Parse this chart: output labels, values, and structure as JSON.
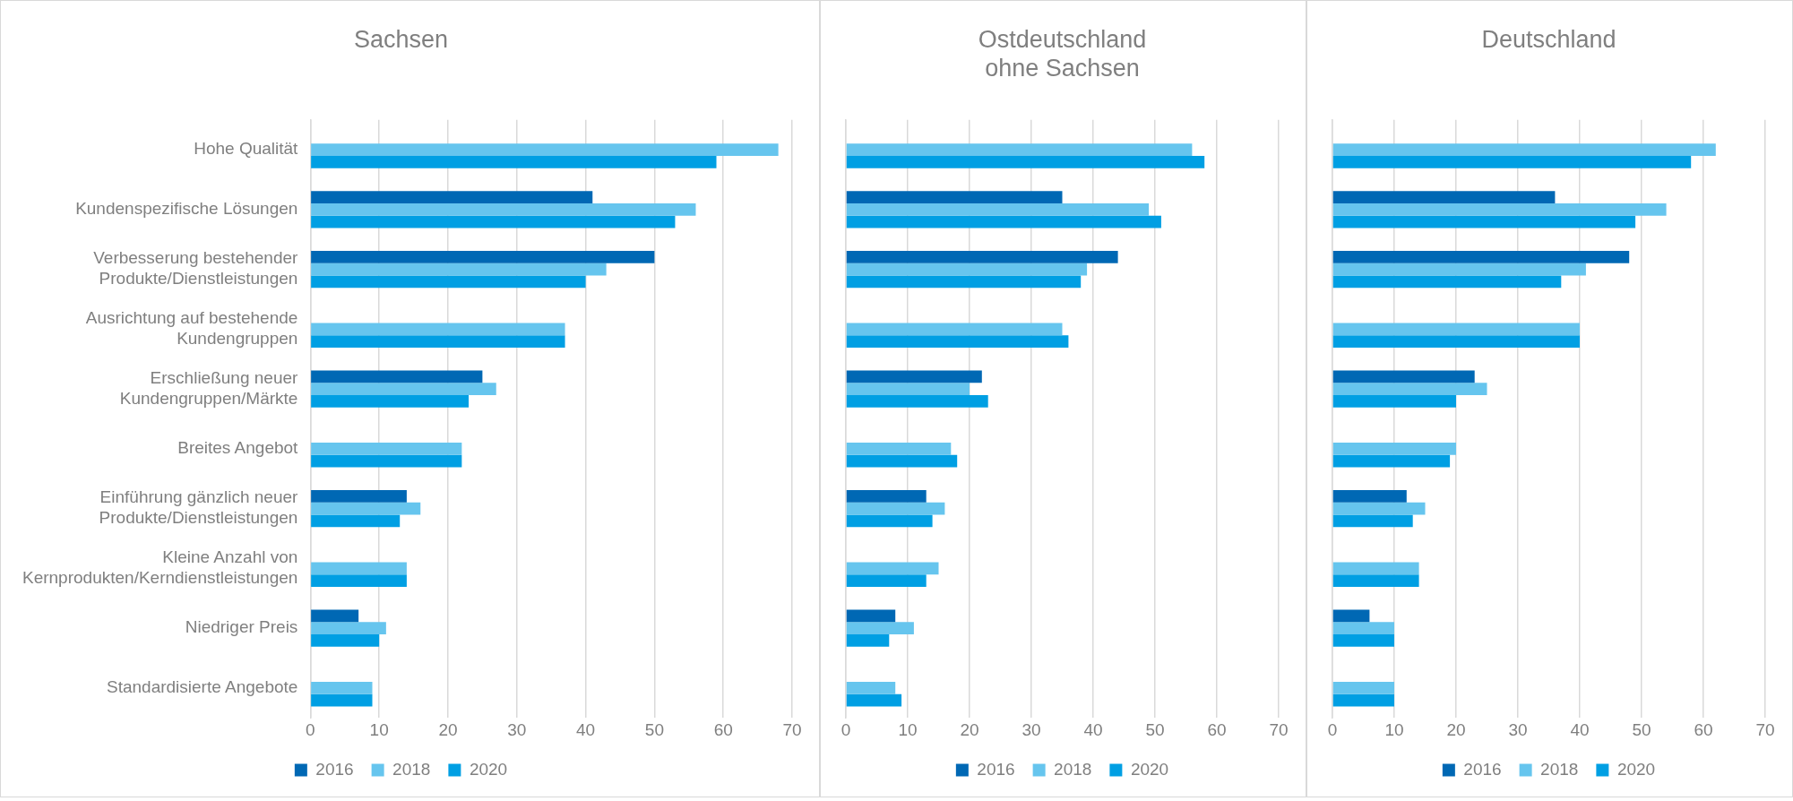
{
  "chart_data": [
    {
      "type": "bar",
      "orientation": "horizontal",
      "title": "Sachsen",
      "categories": [
        "Hohe Qualität",
        "Kundenspezifische Lösungen",
        "Verbesserung bestehender\nProdukte/Dienstleistungen",
        "Ausrichtung auf bestehende\nKundengruppen",
        "Erschließung neuer\nKundengruppen/Märkte",
        "Breites Angebot",
        "Einführung gänzlich neuer\nProdukte/Dienstleistungen",
        "Kleine Anzahl von\nKernprodukten/Kerndienstleistungen",
        "Niedriger Preis",
        "Standardisierte Angebote"
      ],
      "series": [
        {
          "name": "2016",
          "color": "#0068b4",
          "values": [
            null,
            41,
            50,
            null,
            25,
            null,
            14,
            null,
            7,
            null
          ]
        },
        {
          "name": "2018",
          "color": "#66c5ee",
          "values": [
            68,
            56,
            43,
            37,
            27,
            22,
            16,
            14,
            11,
            9
          ]
        },
        {
          "name": "2020",
          "color": "#009fe3",
          "values": [
            59,
            53,
            40,
            37,
            23,
            22,
            13,
            14,
            10,
            9
          ]
        }
      ],
      "xlim": [
        0,
        70
      ],
      "xticks": [
        0,
        10,
        20,
        30,
        40,
        50,
        60,
        70
      ],
      "grid": "x",
      "legend": "bottom"
    },
    {
      "type": "bar",
      "orientation": "horizontal",
      "title": "Ostdeutschland\nohne Sachsen",
      "categories": [
        null,
        null,
        null,
        null,
        null,
        null,
        null,
        null,
        null,
        null
      ],
      "series": [
        {
          "name": "2016",
          "color": "#0068b4",
          "values": [
            null,
            35,
            44,
            null,
            22,
            null,
            13,
            null,
            8,
            null
          ]
        },
        {
          "name": "2018",
          "color": "#66c5ee",
          "values": [
            56,
            49,
            39,
            35,
            20,
            17,
            16,
            15,
            11,
            8
          ]
        },
        {
          "name": "2020",
          "color": "#009fe3",
          "values": [
            58,
            51,
            38,
            36,
            23,
            18,
            14,
            13,
            7,
            9
          ]
        }
      ],
      "xlim": [
        0,
        70
      ],
      "xticks": [
        0,
        10,
        20,
        30,
        40,
        50,
        60,
        70
      ],
      "grid": "x",
      "legend": "bottom",
      "tick_labels": "x"
    },
    {
      "type": "bar",
      "orientation": "horizontal",
      "title": "Deutschland",
      "categories": [
        null,
        null,
        null,
        null,
        null,
        null,
        null,
        null,
        null,
        null
      ],
      "series": [
        {
          "name": "2016",
          "color": "#0068b4",
          "values": [
            null,
            36,
            48,
            null,
            23,
            null,
            12,
            null,
            6,
            null
          ]
        },
        {
          "name": "2018",
          "color": "#66c5ee",
          "values": [
            62,
            54,
            41,
            40,
            25,
            20,
            15,
            14,
            10,
            10
          ]
        },
        {
          "name": "2020",
          "color": "#009fe3",
          "values": [
            58,
            49,
            37,
            40,
            20,
            19,
            13,
            14,
            10,
            10
          ]
        }
      ],
      "xlim": [
        0,
        70
      ],
      "xticks": [
        0,
        10,
        20,
        30,
        40,
        50,
        60,
        70
      ],
      "grid": "x",
      "legend": "bottom",
      "tick_labels": "x"
    }
  ]
}
